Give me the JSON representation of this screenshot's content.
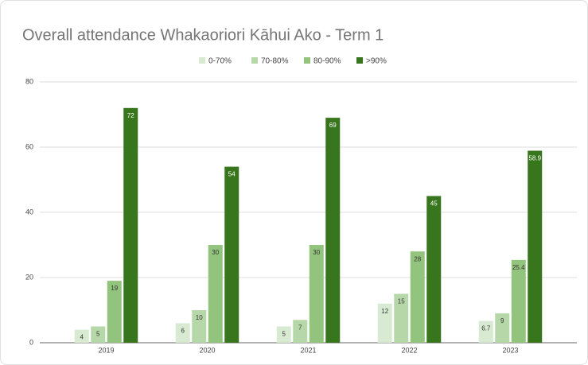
{
  "chart_data": {
    "type": "bar",
    "title": "Overall attendance Whakaoriori Kāhui Ako - Term 1",
    "categories": [
      "2019",
      "2020",
      "2021",
      "2022",
      "2023"
    ],
    "series": [
      {
        "name": "0-70%",
        "color": "#d9ead3",
        "values": [
          4,
          6,
          5,
          12,
          6.7
        ]
      },
      {
        "name": "70-80%",
        "color": "#b6d7a8",
        "values": [
          5,
          10,
          7,
          15,
          9
        ]
      },
      {
        "name": "80-90%",
        "color": "#93c47d",
        "values": [
          19,
          30,
          30,
          28,
          25.4
        ]
      },
      {
        "name": ">90%",
        "color": "#38761d",
        "values": [
          72,
          54,
          69,
          45,
          58.9
        ]
      }
    ],
    "ylim": [
      0,
      80
    ],
    "yticks": [
      0,
      20,
      40,
      60,
      80
    ],
    "grid": true,
    "legend": "top"
  }
}
